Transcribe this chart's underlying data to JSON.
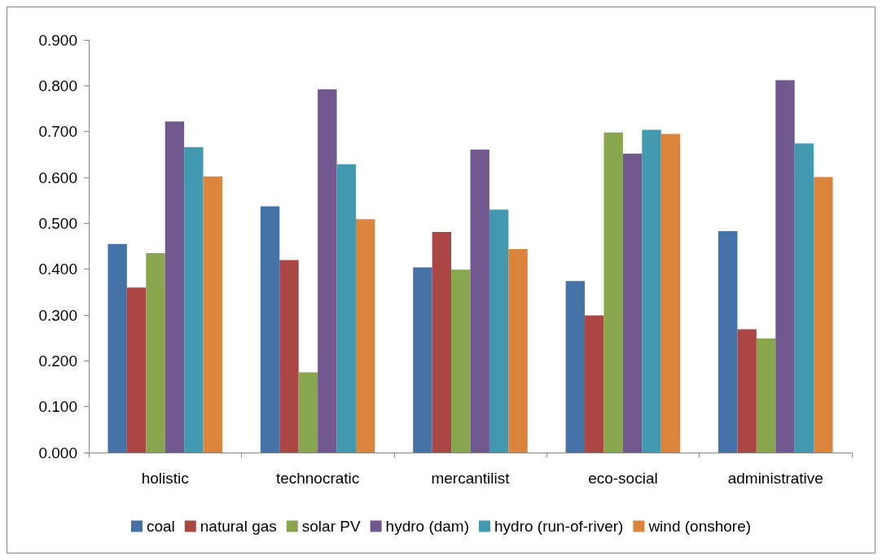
{
  "chart_data": {
    "type": "bar",
    "categories": [
      "holistic",
      "technocratic",
      "mercantilist",
      "eco-social",
      "administrative"
    ],
    "series": [
      {
        "name": "coal",
        "color": "#4572a7",
        "values": [
          0.455,
          0.537,
          0.404,
          0.374,
          0.483
        ]
      },
      {
        "name": "natural gas",
        "color": "#aa4643",
        "values": [
          0.36,
          0.42,
          0.481,
          0.299,
          0.269
        ]
      },
      {
        "name": "solar PV",
        "color": "#89a54e",
        "values": [
          0.435,
          0.175,
          0.399,
          0.698,
          0.249
        ]
      },
      {
        "name": "hydro (dam)",
        "color": "#71588f",
        "values": [
          0.722,
          0.792,
          0.661,
          0.652,
          0.812
        ]
      },
      {
        "name": "hydro (run-of-river)",
        "color": "#4198af",
        "values": [
          0.666,
          0.629,
          0.53,
          0.704,
          0.674
        ]
      },
      {
        "name": "wind (onshore)",
        "color": "#db843d",
        "values": [
          0.602,
          0.509,
          0.444,
          0.695,
          0.601
        ]
      }
    ],
    "ylim": [
      0,
      0.9
    ],
    "yticks": [
      {
        "value": 0,
        "label": "0.000"
      },
      {
        "value": 0.1,
        "label": "0.100"
      },
      {
        "value": 0.2,
        "label": "0.200"
      },
      {
        "value": 0.3,
        "label": "0.300"
      },
      {
        "value": 0.4,
        "label": "0.400"
      },
      {
        "value": 0.5,
        "label": "0.500"
      },
      {
        "value": 0.6,
        "label": "0.600"
      },
      {
        "value": 0.7,
        "label": "0.700"
      },
      {
        "value": 0.8,
        "label": "0.800"
      },
      {
        "value": 0.9,
        "label": "0.900"
      }
    ],
    "grid": false,
    "legend": "bottom"
  }
}
